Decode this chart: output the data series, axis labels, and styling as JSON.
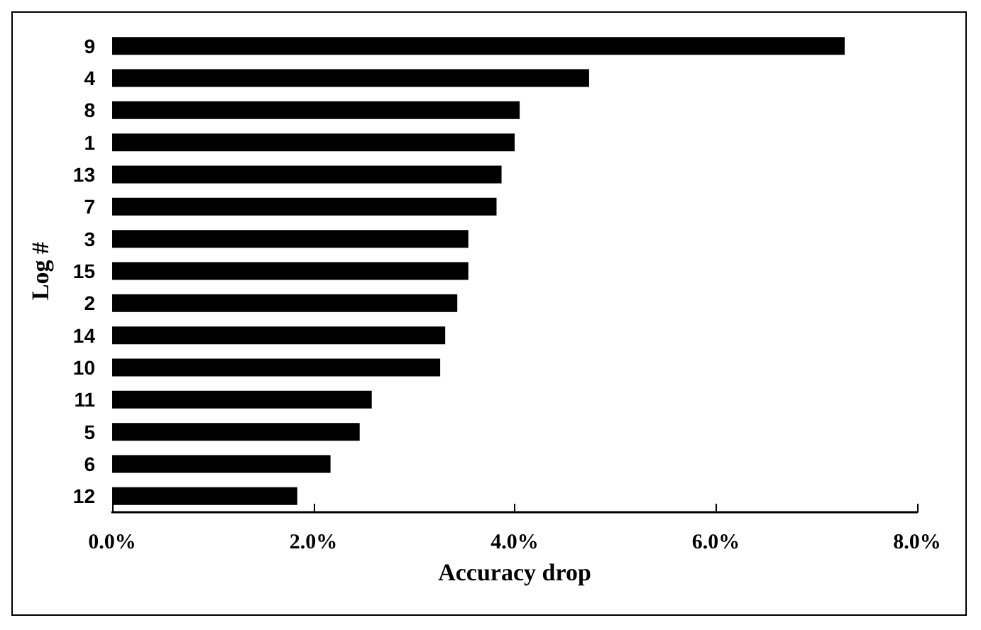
{
  "chart_data": {
    "type": "bar",
    "orientation": "horizontal",
    "xlabel": "Accuracy drop",
    "ylabel": "Log #",
    "categories": [
      "9",
      "4",
      "8",
      "1",
      "13",
      "7",
      "3",
      "15",
      "2",
      "14",
      "10",
      "11",
      "5",
      "6",
      "12"
    ],
    "values": [
      7.28,
      4.74,
      4.05,
      4.0,
      3.87,
      3.82,
      3.54,
      3.54,
      3.43,
      3.31,
      3.26,
      2.58,
      2.46,
      2.17,
      1.84
    ],
    "color": "#000000",
    "xlim": [
      0,
      8
    ],
    "xticks": [
      {
        "value": 0,
        "label": "0.0%"
      },
      {
        "value": 2,
        "label": "2.0%"
      },
      {
        "value": 4,
        "label": "4.0%"
      },
      {
        "value": 6,
        "label": "6.0%"
      },
      {
        "value": 8,
        "label": "8.0%"
      }
    ],
    "grid": false
  }
}
